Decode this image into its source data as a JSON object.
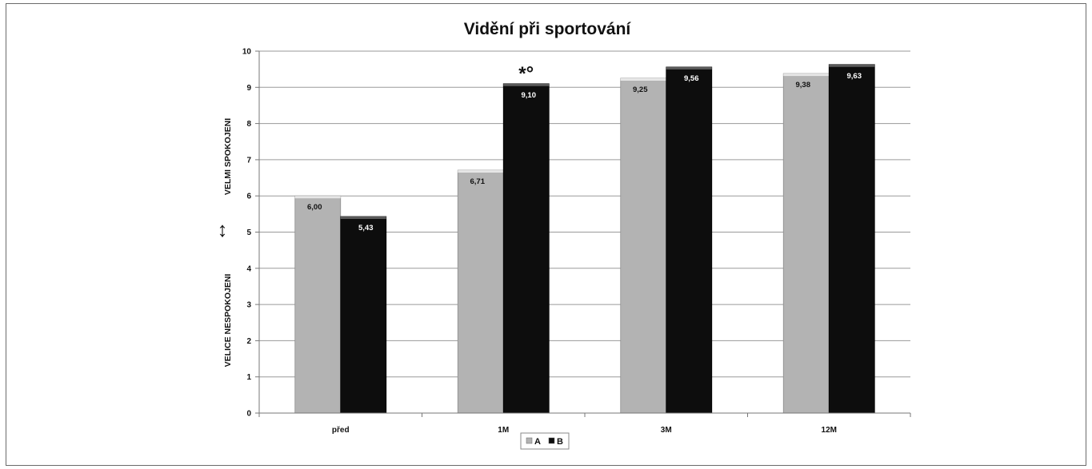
{
  "chart_data": {
    "type": "bar",
    "title": "Vidění při sportování",
    "categories": [
      "před",
      "1M",
      "3M",
      "12M"
    ],
    "series": [
      {
        "name": "A",
        "values": [
          6.0,
          6.71,
          9.25,
          9.38
        ],
        "labels": [
          "6,00",
          "6,71",
          "9,25",
          "9,38"
        ],
        "color": "#b3b3b3"
      },
      {
        "name": "B",
        "values": [
          5.43,
          9.1,
          9.56,
          9.63
        ],
        "labels": [
          "5,43",
          "9,10",
          "9,56",
          "9,63"
        ],
        "color": "#0d0d0d"
      }
    ],
    "ylim": [
      0,
      10
    ],
    "yticks": [
      "0",
      "1",
      "2",
      "3",
      "4",
      "5",
      "6",
      "7",
      "8",
      "9",
      "10"
    ],
    "ylabel_top": "VELMI  SPOKOJENI",
    "ylabel_bottom": "VELICE  NESPOKOJENI",
    "ylabel_arrow": "↕",
    "annotation": {
      "text": "*°",
      "category_index": 1,
      "series_index": 1
    },
    "grid": true,
    "legend_position": "bottom-center"
  }
}
